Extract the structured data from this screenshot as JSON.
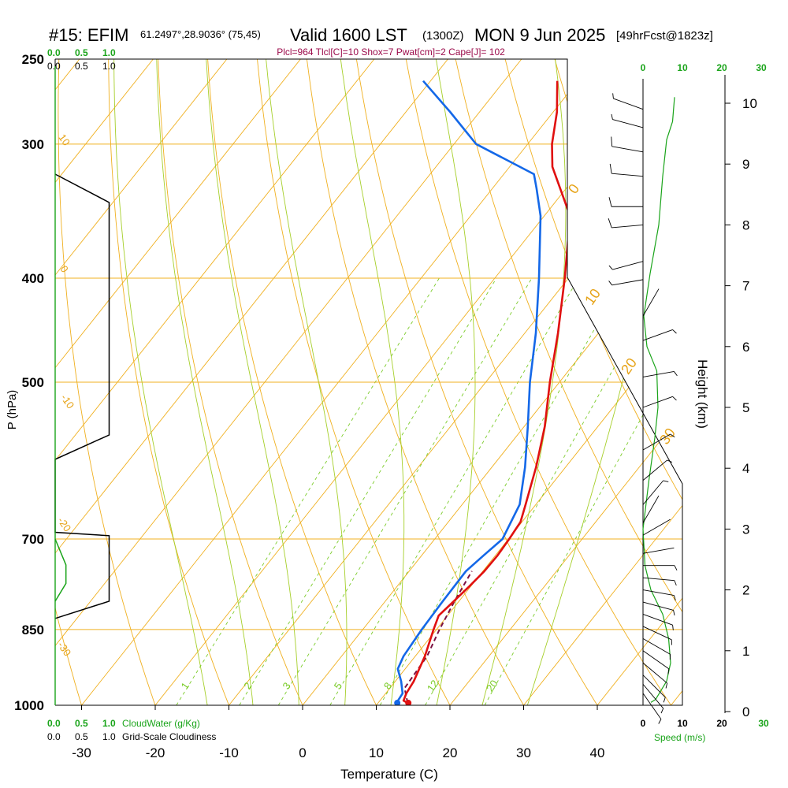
{
  "header": {
    "station": "#15: EFIM",
    "coords": "61.2497°,28.9036° (75,45)",
    "valid": "Valid 1600 LST",
    "zulu": "(1300Z)",
    "date": "MON 9 Jun 2025",
    "forecast": "[49hrFcst@1823z]",
    "params": "Plcl=964 Tlcl[C]=10 Shox=7 Pwat[cm]=2 Cape[J]= 102"
  },
  "chart_data": {
    "type": "line",
    "subtype": "skew-t log-p sounding",
    "xlabel": "Temperature (C)",
    "ylabel": "P (hPa)",
    "right_ylabel": "Height (km)",
    "x_ticks": [
      "-30",
      "-20",
      "-10",
      "0",
      "10",
      "20",
      "30",
      "40"
    ],
    "x_tick_values": [
      -30,
      -20,
      -10,
      0,
      10,
      20,
      30,
      40
    ],
    "p_ticks": [
      "250",
      "300",
      "400",
      "500",
      "700",
      "850",
      "1000"
    ],
    "p_tick_values": [
      250,
      300,
      400,
      500,
      700,
      850,
      1000
    ],
    "height_ticks": [
      "0",
      "1",
      "2",
      "3",
      "4",
      "5",
      "6",
      "7",
      "8",
      "9",
      "10"
    ],
    "height_tick_values": [
      0,
      1,
      2,
      3,
      4,
      5,
      6,
      7,
      8,
      9,
      10
    ],
    "pressure_range": [
      250,
      1000
    ],
    "temperature_range": [
      -34,
      36
    ],
    "height_range": [
      0,
      10.4
    ],
    "temperature_profile": {
      "name": "Temperature",
      "color": "#e01010",
      "points": [
        {
          "p": 995,
          "t": 14.0
        },
        {
          "p": 990,
          "t": 13.2
        },
        {
          "p": 975,
          "t": 12.8
        },
        {
          "p": 950,
          "t": 12.5
        },
        {
          "p": 900,
          "t": 11.3
        },
        {
          "p": 850,
          "t": 9.6
        },
        {
          "p": 825,
          "t": 8.8
        },
        {
          "p": 800,
          "t": 9.3
        },
        {
          "p": 775,
          "t": 9.8
        },
        {
          "p": 750,
          "t": 10.2
        },
        {
          "p": 725,
          "t": 10.3
        },
        {
          "p": 700,
          "t": 10.1
        },
        {
          "p": 675,
          "t": 9.8
        },
        {
          "p": 650,
          "t": 8.6
        },
        {
          "p": 600,
          "t": 6.0
        },
        {
          "p": 550,
          "t": 2.8
        },
        {
          "p": 500,
          "t": -1.3
        },
        {
          "p": 450,
          "t": -5.5
        },
        {
          "p": 400,
          "t": -10.5
        },
        {
          "p": 350,
          "t": -16.5
        },
        {
          "p": 330,
          "t": -20.8
        },
        {
          "p": 315,
          "t": -24.2
        },
        {
          "p": 300,
          "t": -26.7
        },
        {
          "p": 280,
          "t": -29.5
        },
        {
          "p": 262,
          "t": -32.8
        }
      ]
    },
    "dewpoint_profile": {
      "name": "Dewpoint",
      "color": "#1468e8",
      "points": [
        {
          "p": 995,
          "t": 12.5
        },
        {
          "p": 975,
          "t": 12.3
        },
        {
          "p": 950,
          "t": 10.8
        },
        {
          "p": 925,
          "t": 9.0
        },
        {
          "p": 900,
          "t": 8.4
        },
        {
          "p": 850,
          "t": 8.0
        },
        {
          "p": 800,
          "t": 7.8
        },
        {
          "p": 750,
          "t": 7.7
        },
        {
          "p": 725,
          "t": 8.4
        },
        {
          "p": 700,
          "t": 9.2
        },
        {
          "p": 650,
          "t": 7.8
        },
        {
          "p": 600,
          "t": 4.5
        },
        {
          "p": 550,
          "t": 0.5
        },
        {
          "p": 500,
          "t": -4.0
        },
        {
          "p": 450,
          "t": -8.5
        },
        {
          "p": 400,
          "t": -14.0
        },
        {
          "p": 350,
          "t": -20.5
        },
        {
          "p": 330,
          "t": -24.0
        },
        {
          "p": 320,
          "t": -25.9
        },
        {
          "p": 300,
          "t": -37.0
        },
        {
          "p": 280,
          "t": -44.0
        },
        {
          "p": 262,
          "t": -51.0
        }
      ]
    },
    "parcel_path": {
      "name": "Parcel",
      "color": "#7a1040",
      "points": [
        {
          "p": 995,
          "t": 14.0
        },
        {
          "p": 964,
          "t": 12.0
        },
        {
          "p": 900,
          "t": 11.6
        },
        {
          "p": 850,
          "t": 10.4
        },
        {
          "p": 800,
          "t": 9.4
        },
        {
          "p": 750,
          "t": 8.5
        }
      ]
    },
    "surface_points": [
      {
        "p": 995,
        "t": 14.1,
        "color": "#e01010"
      },
      {
        "p": 995,
        "t": 12.6,
        "color": "#1468e8"
      }
    ],
    "isobars": [
      250,
      300,
      400,
      500,
      700,
      850,
      1000
    ],
    "dry_adiabat_labels": [
      "-10",
      "0",
      "10",
      "20",
      "30"
    ],
    "dry_adiabat_values": [
      -10,
      0,
      10,
      20,
      30
    ],
    "moist_adiabat_labels": [
      "-10",
      "0",
      "10",
      "20",
      "30"
    ],
    "moist_adiabat_values": [
      -10,
      0,
      10,
      20,
      30
    ],
    "mixing_ratio_labels": [
      "1",
      "2",
      "3",
      "5",
      "8",
      "12",
      "20"
    ],
    "mixing_ratio_values": [
      1,
      2,
      3,
      5,
      8,
      12,
      20
    ],
    "cloud_panel": {
      "top_scale_green": [
        "0.0",
        "0.5",
        "1.0"
      ],
      "top_scale_black": [
        "0.0",
        "0.5",
        "1.0"
      ],
      "bottom_scale_green": [
        "0.0",
        "0.5",
        "1.0"
      ],
      "bottom_scale_black": [
        "0.0",
        "0.5",
        "1.0"
      ],
      "cloudwater_label": "CloudWater (g/Kg)",
      "cloudiness_label": "Grid-Scale Cloudiness",
      "cloudiness_profile": [
        {
          "p": 320,
          "v": 0.0
        },
        {
          "p": 340,
          "v": 0.5
        },
        {
          "p": 560,
          "v": 0.5
        },
        {
          "p": 590,
          "v": 0.0
        },
        {
          "p": 690,
          "v": 0.0
        },
        {
          "p": 695,
          "v": 0.5
        },
        {
          "p": 800,
          "v": 0.5
        },
        {
          "p": 830,
          "v": 0.0
        }
      ],
      "cloudwater_profile": [
        {
          "p": 700,
          "v": 0.0
        },
        {
          "p": 740,
          "v": 0.1
        },
        {
          "p": 770,
          "v": 0.1
        },
        {
          "p": 800,
          "v": 0.0
        }
      ]
    },
    "wind_panel": {
      "top_scale_green": [
        "0",
        "10",
        "20",
        "30"
      ],
      "top_scale_black": [
        "0"
      ],
      "bottom_scale_black": [
        "0",
        "10",
        "20"
      ],
      "bottom_scale_green": [
        "30"
      ],
      "speed_label": "Speed (m/s)",
      "speed_profile": [
        {
          "h": 0.15,
          "s": 2.0
        },
        {
          "h": 0.2,
          "s": 3.2
        },
        {
          "h": 0.5,
          "s": 6.0
        },
        {
          "h": 0.8,
          "s": 7.0
        },
        {
          "h": 1.2,
          "s": 6.5
        },
        {
          "h": 1.6,
          "s": 5.0
        },
        {
          "h": 2.0,
          "s": 2.0
        },
        {
          "h": 2.4,
          "s": 0.5
        },
        {
          "h": 3.0,
          "s": 0.0
        },
        {
          "h": 3.8,
          "s": 1.5
        },
        {
          "h": 4.5,
          "s": 3.0
        },
        {
          "h": 5.0,
          "s": 3.8
        },
        {
          "h": 5.6,
          "s": 3.5
        },
        {
          "h": 6.0,
          "s": 1.0
        },
        {
          "h": 6.5,
          "s": 0.2
        },
        {
          "h": 7.2,
          "s": 1.8
        },
        {
          "h": 8.0,
          "s": 4.0
        },
        {
          "h": 8.8,
          "s": 5.0
        },
        {
          "h": 9.4,
          "s": 6.0
        },
        {
          "h": 9.7,
          "s": 7.5
        },
        {
          "h": 10.1,
          "s": 8.0
        }
      ],
      "barbs": [
        {
          "h": 0.3,
          "dir": 215,
          "spd": 3
        },
        {
          "h": 0.45,
          "dir": 220,
          "spd": 5
        },
        {
          "h": 0.6,
          "dir": 225,
          "spd": 6
        },
        {
          "h": 0.8,
          "dir": 230,
          "spd": 7
        },
        {
          "h": 1.0,
          "dir": 235,
          "spd": 7
        },
        {
          "h": 1.2,
          "dir": 240,
          "spd": 7
        },
        {
          "h": 1.4,
          "dir": 245,
          "spd": 6
        },
        {
          "h": 1.6,
          "dir": 250,
          "spd": 6
        },
        {
          "h": 1.8,
          "dir": 255,
          "spd": 5
        },
        {
          "h": 2.0,
          "dir": 260,
          "spd": 5
        },
        {
          "h": 2.2,
          "dir": 265,
          "spd": 4
        },
        {
          "h": 2.4,
          "dir": 270,
          "spd": 3
        },
        {
          "h": 2.6,
          "dir": 280,
          "spd": 2
        },
        {
          "h": 2.9,
          "dir": 300,
          "spd": 1
        },
        {
          "h": 3.1,
          "dir": 330,
          "spd": 2
        },
        {
          "h": 3.4,
          "dir": 320,
          "spd": 3
        },
        {
          "h": 3.8,
          "dir": 310,
          "spd": 4
        },
        {
          "h": 4.3,
          "dir": 300,
          "spd": 5
        },
        {
          "h": 5.0,
          "dir": 290,
          "spd": 5
        },
        {
          "h": 5.5,
          "dir": 280,
          "spd": 4
        },
        {
          "h": 6.1,
          "dir": 290,
          "spd": 3
        },
        {
          "h": 6.5,
          "dir": 330,
          "spd": 2
        },
        {
          "h": 7.1,
          "dir": 100,
          "spd": 3
        },
        {
          "h": 7.4,
          "dir": 105,
          "spd": 5
        },
        {
          "h": 8.0,
          "dir": 95,
          "spd": 8
        },
        {
          "h": 8.3,
          "dir": 90,
          "spd": 10
        },
        {
          "h": 8.8,
          "dir": 85,
          "spd": 12
        },
        {
          "h": 9.2,
          "dir": 80,
          "spd": 8
        },
        {
          "h": 9.6,
          "dir": 75,
          "spd": 5
        },
        {
          "h": 9.9,
          "dir": 70,
          "spd": 3
        }
      ]
    }
  }
}
